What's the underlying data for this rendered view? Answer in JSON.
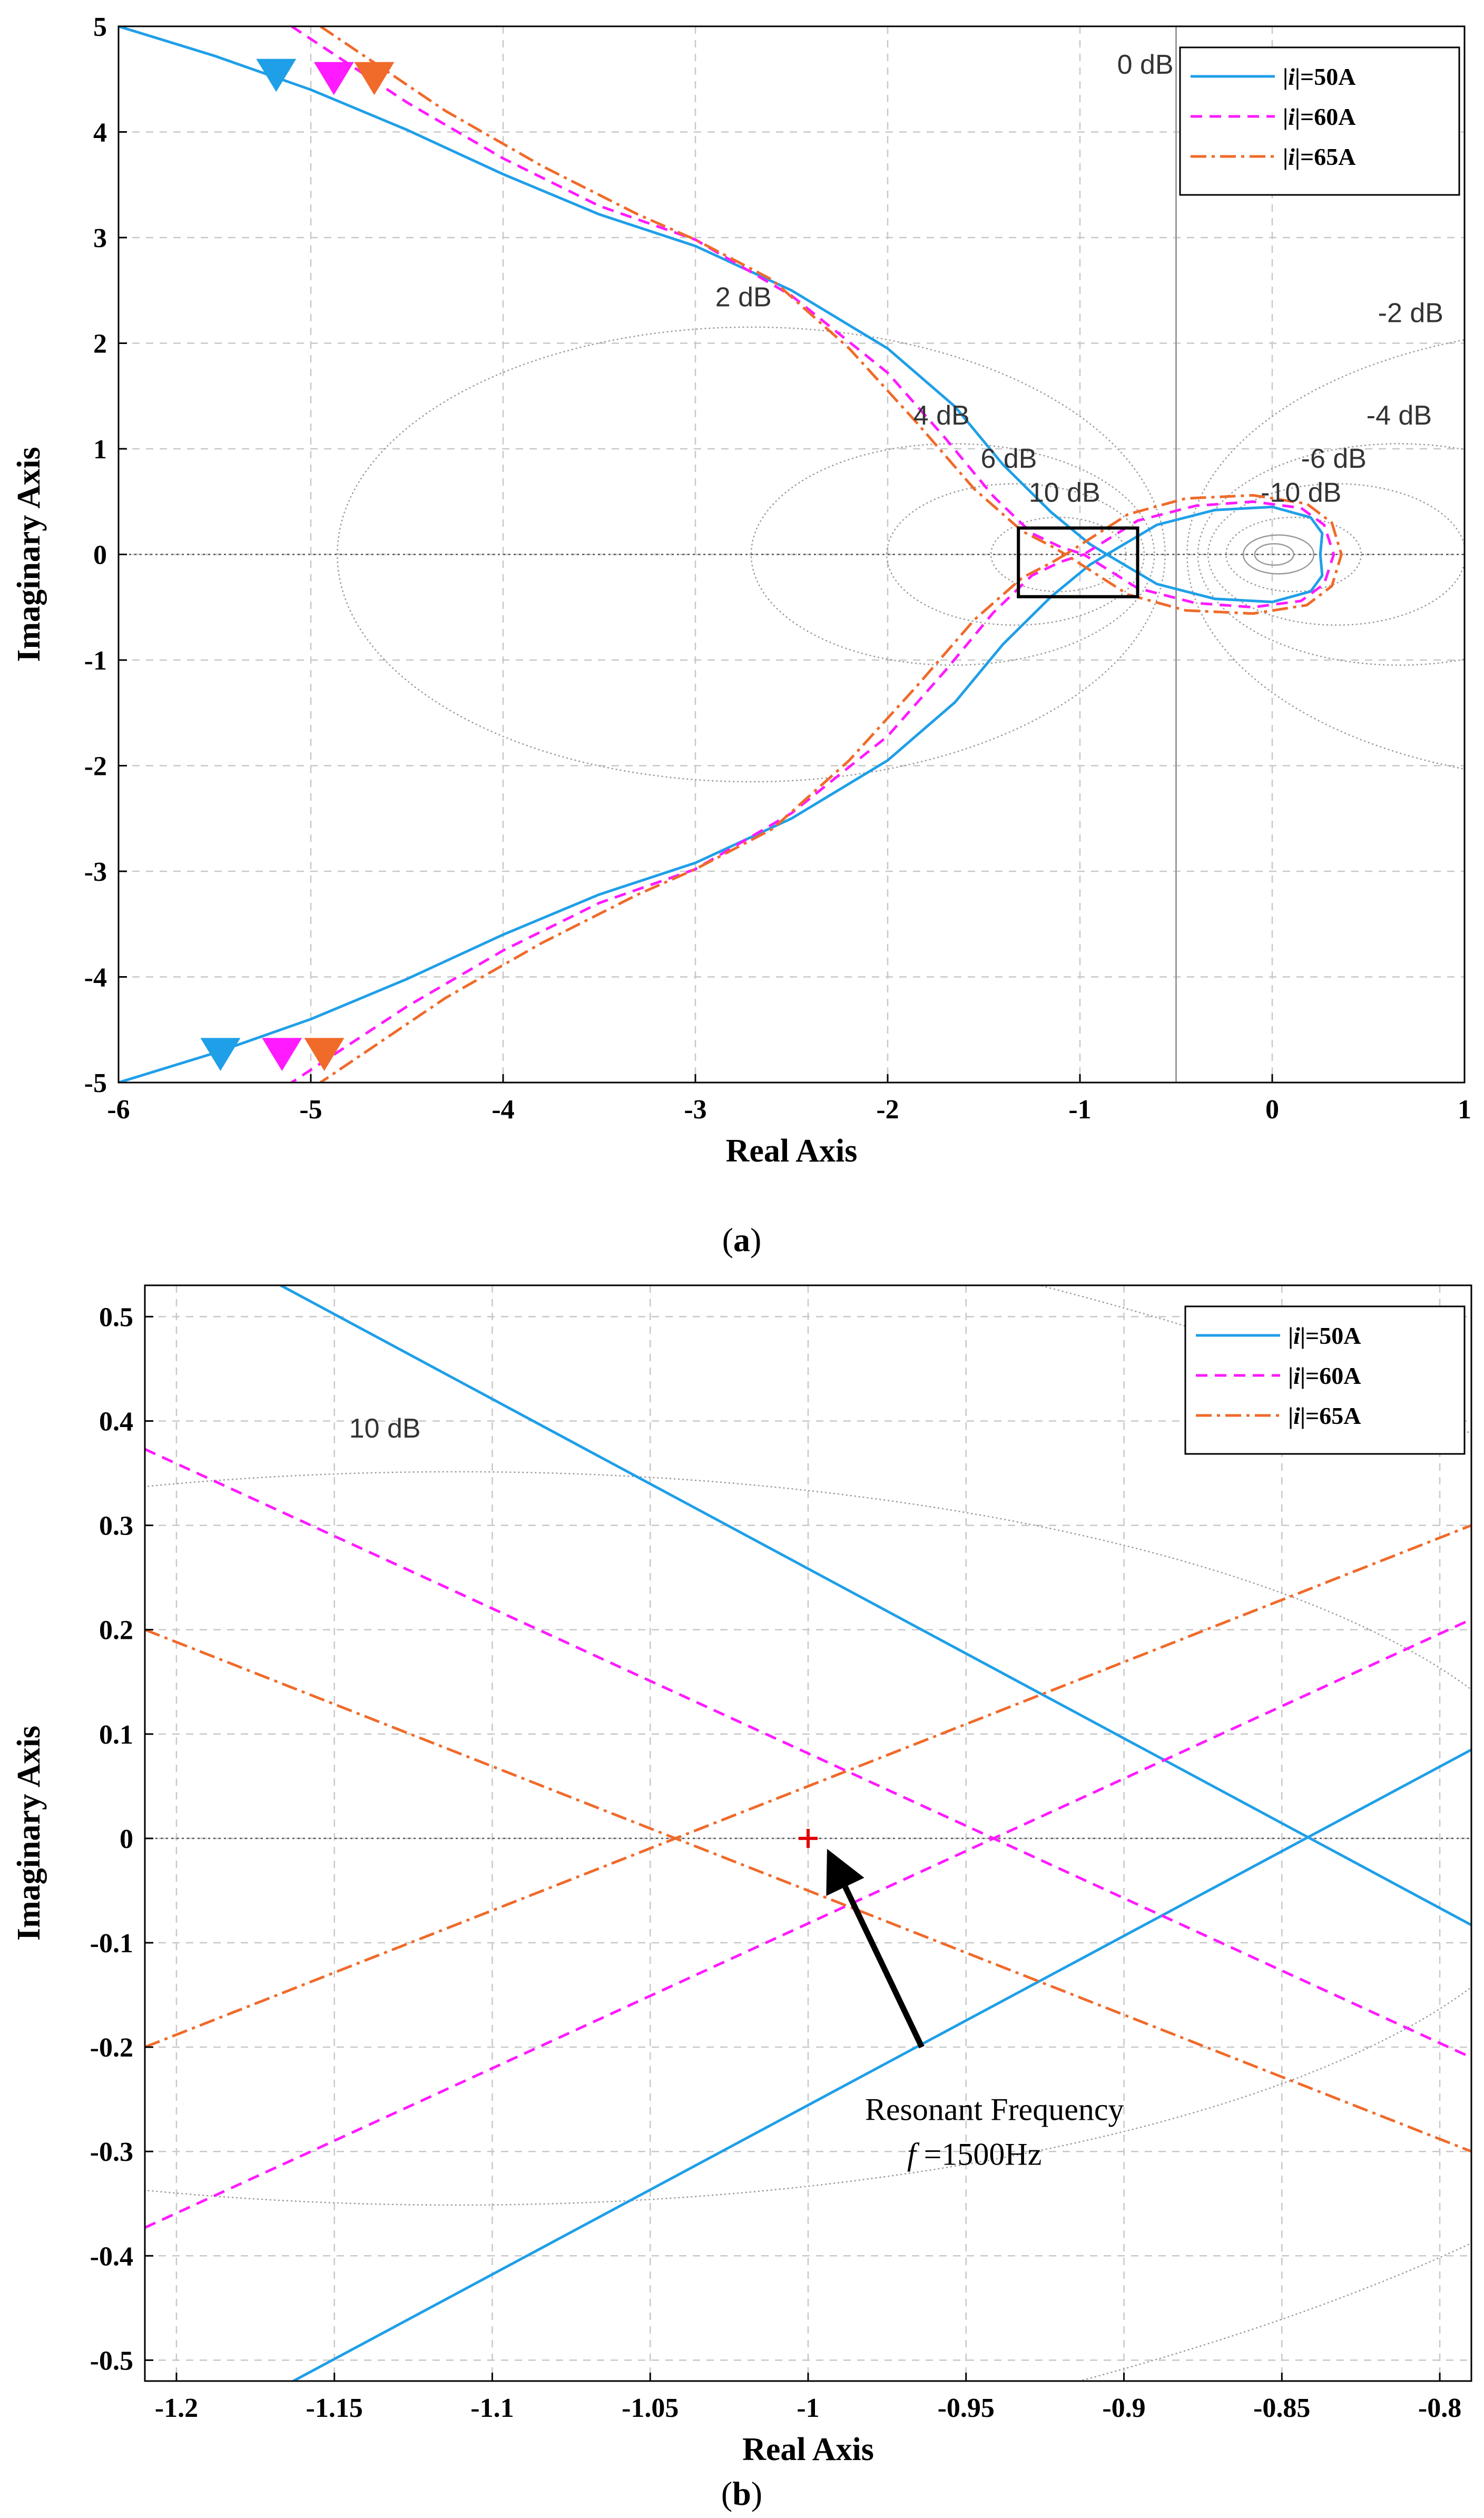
{
  "colors": {
    "s50": "#1f9fe8",
    "s60": "#ff1aff",
    "s65": "#f06a2a",
    "grid": "#c8c8c8",
    "contour": "#9a9a9a",
    "marker": "#e00000"
  },
  "legend": [
    {
      "prefix": "|",
      "var": "i",
      "suffix": "|=50A"
    },
    {
      "prefix": "|",
      "var": "i",
      "suffix": "|=60A"
    },
    {
      "prefix": "|",
      "var": "i",
      "suffix": "|=65A"
    }
  ],
  "chart_data": [
    {
      "type": "line",
      "panel": "a",
      "caption_open": "(",
      "caption_letter": "a",
      "caption_close": ")",
      "xlabel": "Real Axis",
      "ylabel": "Imaginary Axis",
      "xlim": [
        -6,
        1
      ],
      "ylim": [
        -5,
        5
      ],
      "xticks": [
        -6,
        -5,
        -4,
        -3,
        -2,
        -1,
        0,
        1
      ],
      "yticks": [
        -5,
        -4,
        -3,
        -2,
        -1,
        0,
        1,
        2,
        3,
        4,
        5
      ],
      "nichols_contours_db": [
        2,
        4,
        6,
        10,
        -2,
        -4,
        -6,
        -10
      ],
      "contour_labels": [
        {
          "text": "0 dB",
          "x": -0.66,
          "y": 4.55
        },
        {
          "text": "2 dB",
          "x": -2.75,
          "y": 2.35
        },
        {
          "text": "4 dB",
          "x": -1.72,
          "y": 1.23
        },
        {
          "text": "6 dB",
          "x": -1.37,
          "y": 0.82
        },
        {
          "text": "10 dB",
          "x": -1.08,
          "y": 0.5
        },
        {
          "text": "-2 dB",
          "x": 0.72,
          "y": 2.2
        },
        {
          "text": "-4 dB",
          "x": 0.66,
          "y": 1.23
        },
        {
          "text": "-6 dB",
          "x": 0.32,
          "y": 0.82
        },
        {
          "text": "-10 dB",
          "x": 0.15,
          "y": 0.5
        }
      ],
      "zoom_box": {
        "x": [
          -1.32,
          -0.7
        ],
        "y": [
          -0.4,
          0.25
        ]
      },
      "series": [
        {
          "name": "|i|=50A",
          "upper": [
            [
              -6.0,
              5.0
            ],
            [
              -5.5,
              4.72
            ],
            [
              -5.0,
              4.4
            ],
            [
              -4.5,
              4.02
            ],
            [
              -4.0,
              3.6
            ],
            [
              -3.5,
              3.22
            ],
            [
              -3.0,
              2.92
            ],
            [
              -2.5,
              2.5
            ],
            [
              -2.0,
              1.95
            ],
            [
              -1.65,
              1.4
            ],
            [
              -1.4,
              0.85
            ],
            [
              -1.15,
              0.4
            ],
            [
              -0.95,
              0.1
            ],
            [
              -0.86,
              0.0
            ],
            [
              -0.6,
              0.28
            ],
            [
              -0.3,
              0.42
            ],
            [
              0.0,
              0.45
            ],
            [
              0.2,
              0.35
            ],
            [
              0.26,
              0.2
            ],
            [
              0.25,
              0.0
            ]
          ],
          "arrow_upper": [
            -5.18,
            4.55
          ],
          "arrow_lower": [
            -5.47,
            -4.72
          ]
        },
        {
          "name": "|i|=60A",
          "upper": [
            [
              -5.1,
              5.0
            ],
            [
              -4.5,
              4.28
            ],
            [
              -4.0,
              3.75
            ],
            [
              -3.5,
              3.3
            ],
            [
              -3.0,
              2.98
            ],
            [
              -2.5,
              2.45
            ],
            [
              -2.0,
              1.72
            ],
            [
              -1.7,
              1.1
            ],
            [
              -1.45,
              0.55
            ],
            [
              -1.25,
              0.2
            ],
            [
              -1.1,
              0.07
            ],
            [
              -0.98,
              0.0
            ],
            [
              -0.7,
              0.32
            ],
            [
              -0.4,
              0.46
            ],
            [
              -0.1,
              0.5
            ],
            [
              0.15,
              0.44
            ],
            [
              0.27,
              0.28
            ],
            [
              0.32,
              0.0
            ]
          ],
          "arrow_upper": [
            -4.88,
            4.52
          ],
          "arrow_lower": [
            -5.15,
            -4.72
          ]
        },
        {
          "name": "|i|=65A",
          "upper": [
            [
              -4.95,
              5.0
            ],
            [
              -4.3,
              4.2
            ],
            [
              -3.8,
              3.68
            ],
            [
              -3.3,
              3.22
            ],
            [
              -3.0,
              2.98
            ],
            [
              -2.6,
              2.6
            ],
            [
              -2.2,
              1.95
            ],
            [
              -1.85,
              1.25
            ],
            [
              -1.55,
              0.62
            ],
            [
              -1.3,
              0.22
            ],
            [
              -1.15,
              0.08
            ],
            [
              -1.075,
              0.0
            ],
            [
              -0.75,
              0.38
            ],
            [
              -0.45,
              0.53
            ],
            [
              -0.1,
              0.56
            ],
            [
              0.18,
              0.48
            ],
            [
              0.31,
              0.3
            ],
            [
              0.36,
              0.0
            ]
          ],
          "arrow_upper": [
            -4.67,
            4.52
          ],
          "arrow_lower": [
            -4.93,
            -4.72
          ]
        }
      ]
    },
    {
      "type": "line",
      "panel": "b",
      "caption_open": "(",
      "caption_letter": "b",
      "caption_close": ")",
      "xlabel": "Real Axis",
      "ylabel": "Imaginary Axis",
      "xlim": [
        -1.21,
        -0.79
      ],
      "ylim": [
        -0.52,
        0.53
      ],
      "xticks": [
        -1.2,
        -1.15,
        -1.1,
        -1.05,
        -1,
        -0.95,
        -0.9,
        -0.85,
        -0.8
      ],
      "yticks": [
        -0.5,
        -0.4,
        -0.3,
        -0.2,
        -0.1,
        0,
        0.1,
        0.2,
        0.3,
        0.4,
        0.5
      ],
      "nichols_contours_db": [
        6,
        10
      ],
      "contour_labels": [
        {
          "text": "10 dB",
          "x": -1.134,
          "y": 0.384
        }
      ],
      "series": [
        {
          "name": "|i|=50A",
          "lines": [
            [
              [
                -1.167,
                0.53
              ],
              [
                -0.79,
                -0.083
              ]
            ],
            [
              [
                -1.163,
                -0.52
              ],
              [
                -0.79,
                0.085
              ]
            ]
          ]
        },
        {
          "name": "|i|=60A",
          "lines": [
            [
              [
                -1.21,
                0.373
              ],
              [
                -0.79,
                -0.21
              ]
            ],
            [
              [
                -1.21,
                -0.373
              ],
              [
                -0.79,
                0.21
              ]
            ]
          ]
        },
        {
          "name": "|i|=65A",
          "lines": [
            [
              [
                -1.21,
                0.2
              ],
              [
                -0.79,
                -0.3
              ]
            ],
            [
              [
                -1.21,
                -0.2
              ],
              [
                -0.79,
                0.3
              ]
            ]
          ]
        }
      ],
      "marker": {
        "x": -1,
        "y": 0,
        "symbol": "+"
      },
      "annotation": {
        "line1": "Resonant Frequency",
        "line2_var": "f",
        "line2_value": " =1500Hz",
        "arrow_from": [
          -0.964,
          -0.2
        ],
        "arrow_to": [
          -0.994,
          -0.01
        ],
        "text_x": -0.982,
        "text_y": -0.285
      }
    }
  ]
}
